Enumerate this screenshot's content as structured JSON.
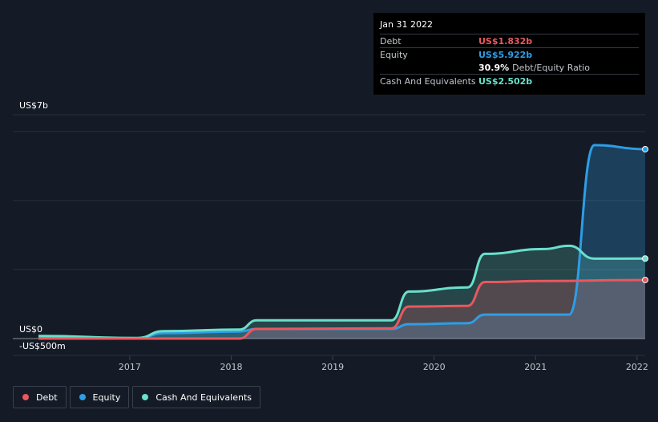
{
  "tooltip": {
    "date": "Jan 31 2022",
    "rows": [
      {
        "label": "Debt",
        "value": "US$1.832b",
        "color": "#e8585e"
      },
      {
        "label": "Equity",
        "value": "US$5.922b",
        "color": "#2d9ee6"
      },
      {
        "ratio_value": "30.9%",
        "ratio_label": "Debt/Equity Ratio"
      },
      {
        "label": "Cash And Equivalents",
        "value": "US$2.502b",
        "color": "#69e0cb"
      }
    ]
  },
  "legend": [
    {
      "label": "Debt",
      "color": "#e8585e"
    },
    {
      "label": "Equity",
      "color": "#2d9ee6"
    },
    {
      "label": "Cash And Equivalents",
      "color": "#69e0cb"
    }
  ],
  "chart_data": {
    "type": "area",
    "y_tick_labels": {
      "top": "US$7b",
      "zero": "US$0",
      "bottom": "-US$500m"
    },
    "ylim": [
      -0.5,
      7
    ],
    "xlim": [
      2016.1,
      2022.08
    ],
    "x_tick_labels": [
      "2017",
      "2018",
      "2019",
      "2020",
      "2021",
      "2022"
    ],
    "x_tick_values": [
      2017,
      2018,
      2019,
      2020,
      2021,
      2022
    ],
    "grid": true,
    "legend_position": "bottom-left",
    "series": [
      {
        "name": "Cash And Equivalents",
        "color": "#69e0cb",
        "x": [
          2016.1,
          2017.08,
          2017.33,
          2018.08,
          2018.25,
          2019.58,
          2019.75,
          2020.33,
          2020.5,
          2021.08,
          2021.33,
          2021.58,
          2022.08
        ],
        "y": [
          0.08,
          0.02,
          0.23,
          0.28,
          0.57,
          0.57,
          1.47,
          1.6,
          2.65,
          2.8,
          2.9,
          2.5,
          2.502
        ]
      },
      {
        "name": "Debt",
        "color": "#e8585e",
        "x": [
          2016.1,
          2018.08,
          2018.25,
          2019.58,
          2019.75,
          2020.33,
          2020.5,
          2021.08,
          2022.08
        ],
        "y": [
          0.0,
          0.0,
          0.3,
          0.32,
          1.0,
          1.02,
          1.77,
          1.8,
          1.832
        ]
      },
      {
        "name": "Equity",
        "color": "#2d9ee6",
        "x": [
          2016.1,
          2017.08,
          2017.33,
          2018.08,
          2018.25,
          2019.58,
          2019.75,
          2020.33,
          2020.5,
          2021.33,
          2021.58,
          2022.08
        ],
        "y": [
          0.05,
          0.0,
          0.17,
          0.22,
          0.3,
          0.3,
          0.45,
          0.48,
          0.75,
          0.75,
          6.05,
          5.922
        ]
      }
    ]
  }
}
